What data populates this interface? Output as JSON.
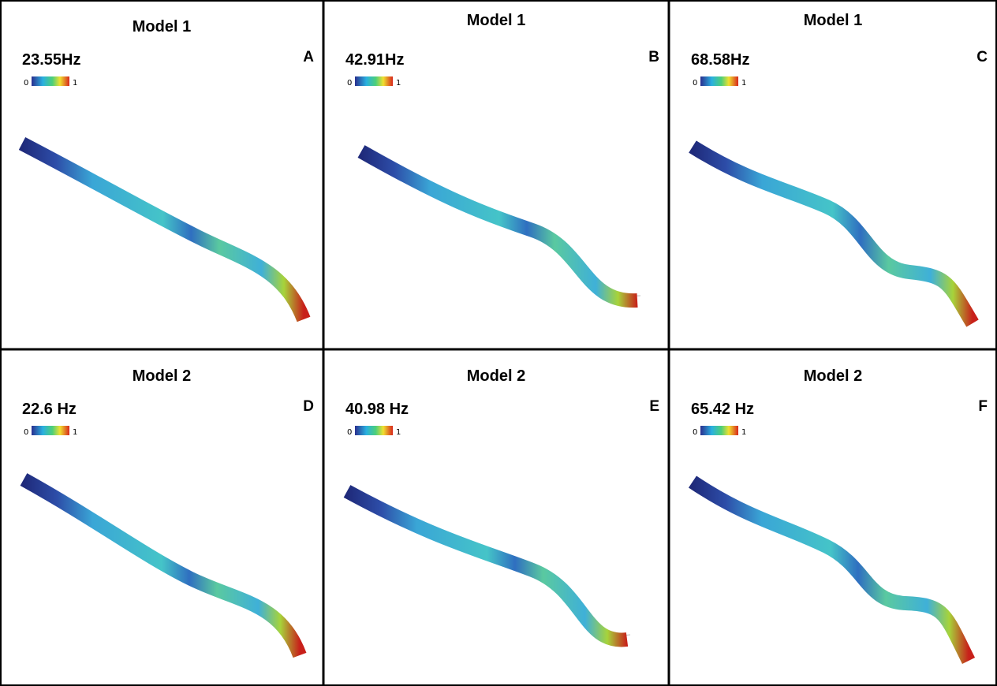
{
  "panels": [
    {
      "title": "Model 1",
      "frequency": "23.55Hz",
      "letter": "A",
      "scale_min": "0",
      "scale_max": "1"
    },
    {
      "title": "Model 1",
      "frequency": "42.91Hz",
      "letter": "B",
      "scale_min": "0",
      "scale_max": "1"
    },
    {
      "title": "Model 1",
      "frequency": "68.58Hz",
      "letter": "C",
      "scale_min": "0",
      "scale_max": "1"
    },
    {
      "title": "Model 2",
      "frequency": "22.6 Hz",
      "letter": "D",
      "scale_min": "0",
      "scale_max": "1"
    },
    {
      "title": "Model 2",
      "frequency": "40.98 Hz",
      "letter": "E",
      "scale_min": "0",
      "scale_max": "1"
    },
    {
      "title": "Model 2",
      "frequency": "65.42 Hz",
      "letter": "F",
      "scale_min": "0",
      "scale_max": "1"
    }
  ]
}
